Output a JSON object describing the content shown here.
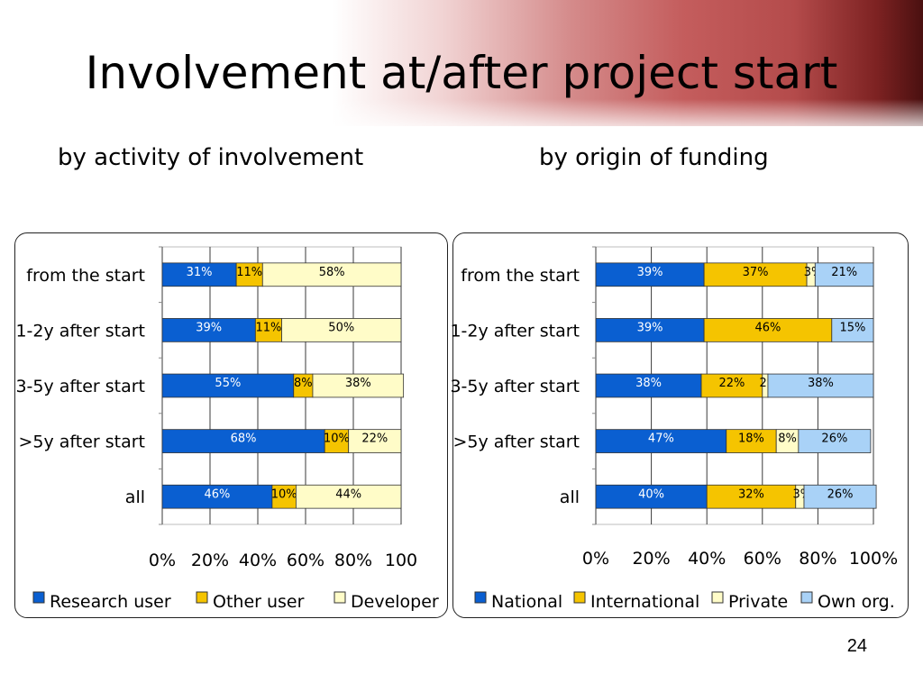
{
  "slide": {
    "title": "Involvement at/after project start",
    "page_number": "24"
  },
  "colors": {
    "blue": "#0a5fd1",
    "orange": "#f5c400",
    "cream": "#fffcc8",
    "lightblue": "#a9d2f7"
  },
  "chart_data": [
    {
      "type": "bar",
      "orientation": "horizontal",
      "stacked": true,
      "subtitle": "by activity of involvement",
      "categories": [
        "from the start",
        "1-2y after start",
        "3-5y after start",
        ">5y after start",
        "all"
      ],
      "series": [
        {
          "name": "Research user",
          "values": [
            31,
            39,
            55,
            68,
            46
          ],
          "color": "#0a5fd1"
        },
        {
          "name": "Other user",
          "values": [
            11,
            11,
            8,
            10,
            10
          ],
          "color": "#f5c400"
        },
        {
          "name": "Developer",
          "values": [
            58,
            50,
            38,
            22,
            44
          ],
          "color": "#fffcc8"
        }
      ],
      "data_labels": [
        [
          "31%",
          "39%",
          "55%",
          "68%",
          "46%"
        ],
        [
          "11%",
          "11%",
          "8%",
          "10%",
          "10%"
        ],
        [
          "58%",
          "50%",
          "38%",
          "22%",
          "44%"
        ]
      ],
      "xticks": [
        "0%",
        "20%",
        "40%",
        "60%",
        "80%",
        "100"
      ],
      "xlim": [
        0,
        100
      ],
      "grid": true,
      "legend": "bottom"
    },
    {
      "type": "bar",
      "orientation": "horizontal",
      "stacked": true,
      "subtitle": "by origin of funding",
      "categories": [
        "from the start",
        "1-2y after start",
        "3-5y after start",
        ">5y after start",
        "all"
      ],
      "series": [
        {
          "name": "National",
          "values": [
            39,
            39,
            38,
            47,
            40
          ],
          "color": "#0a5fd1"
        },
        {
          "name": "International",
          "values": [
            37,
            46,
            22,
            18,
            32
          ],
          "color": "#f5c400"
        },
        {
          "name": "Private",
          "values": [
            3,
            0,
            2,
            8,
            3
          ],
          "color": "#fffcc8"
        },
        {
          "name": "Own org.",
          "values": [
            21,
            15,
            38,
            26,
            26
          ],
          "color": "#a9d2f7"
        }
      ],
      "data_labels": [
        [
          "39%",
          "39%",
          "38%",
          "47%",
          "40%"
        ],
        [
          "37%",
          "46%",
          "22%",
          "18%",
          "32%"
        ],
        [
          "3%",
          "",
          "2%",
          "8%",
          "3%"
        ],
        [
          "21%",
          "15%",
          "38%",
          "26%",
          "26%"
        ]
      ],
      "xticks": [
        "0%",
        "20%",
        "40%",
        "60%",
        "80%",
        "100%"
      ],
      "xlim": [
        0,
        100
      ],
      "grid": true,
      "legend": "bottom"
    }
  ]
}
